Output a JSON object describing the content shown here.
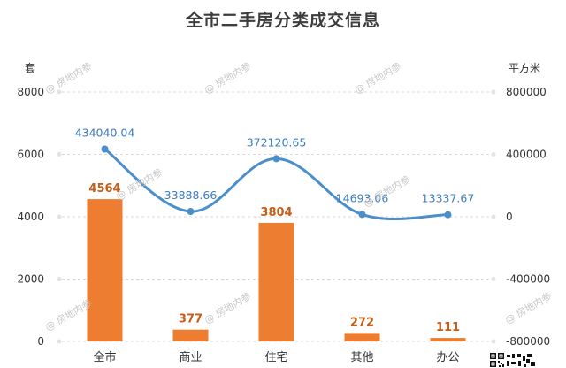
{
  "chart_data": {
    "type": "bar+line",
    "title": "全市二手房分类成交信息",
    "categories": [
      "全市",
      "商业",
      "住宅",
      "其他",
      "办公"
    ],
    "left_axis": {
      "unit": "套",
      "range": [
        0,
        8000
      ],
      "ticks": [
        0,
        2000,
        4000,
        6000,
        8000
      ]
    },
    "right_axis": {
      "unit": "平方米",
      "range": [
        -800000,
        800000
      ],
      "ticks": [
        -800000,
        -400000,
        0,
        400000,
        800000
      ]
    },
    "series": [
      {
        "kind": "bar",
        "axis": "left",
        "color": "#ED7D31",
        "values": [
          4564,
          377,
          3804,
          272,
          111
        ],
        "labels": [
          "4564",
          "377",
          "3804",
          "272",
          "111"
        ]
      },
      {
        "kind": "line",
        "axis": "right",
        "color": "#4A8FCB",
        "values": [
          434040.04,
          33888.66,
          372120.65,
          14693.06,
          13337.67
        ],
        "labels": [
          "434040.04",
          "33888.66",
          "372120.65",
          "14693.06",
          "13337.67"
        ]
      }
    ],
    "grid": true
  },
  "watermark_text": "@ 房地内参",
  "icons": {
    "qr": "qr-code-icon"
  }
}
